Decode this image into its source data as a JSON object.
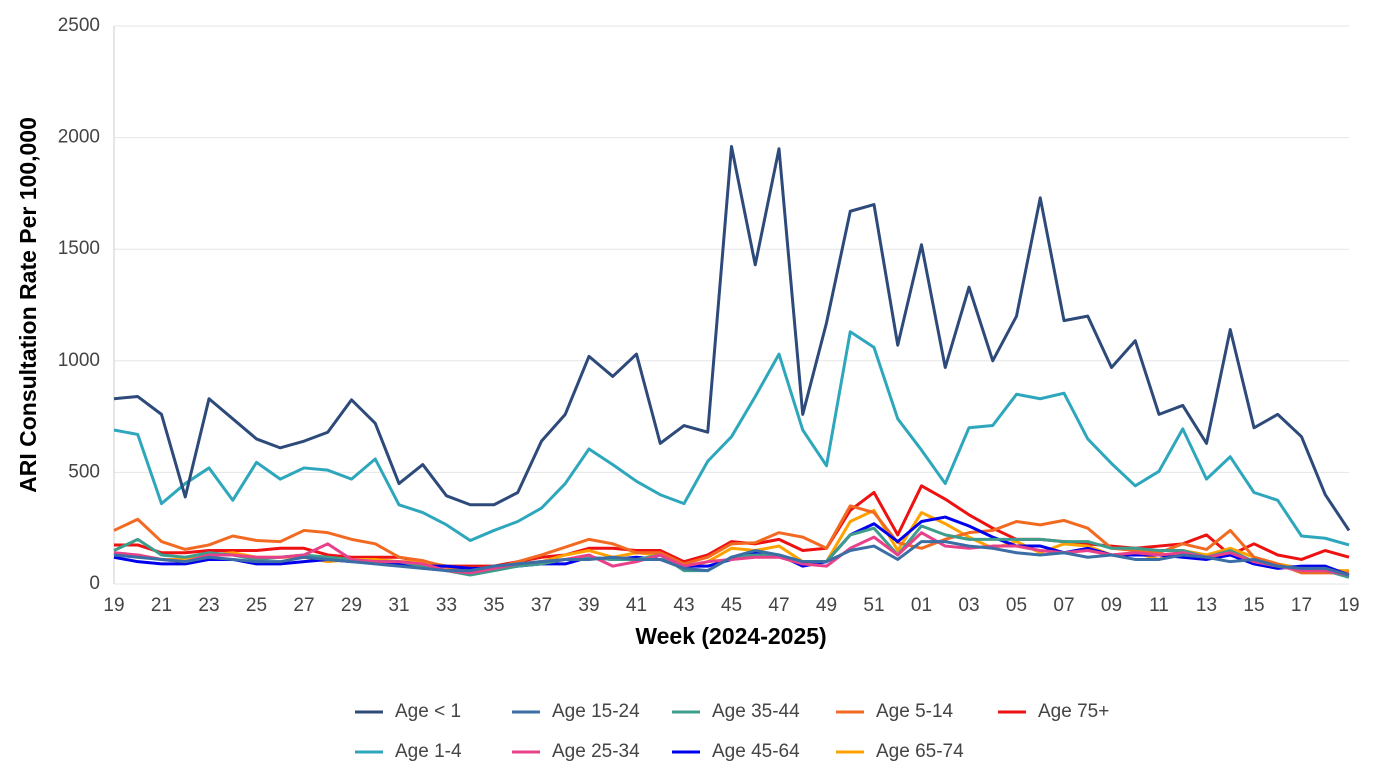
{
  "chart_data": {
    "type": "line",
    "x_label": "Week (2024-2025)",
    "y_label": "ARI Consultation Rate Per 100,000",
    "categories": [
      "19",
      null,
      "21",
      null,
      "23",
      null,
      "25",
      null,
      "27",
      null,
      "29",
      null,
      "31",
      null,
      "33",
      null,
      "35",
      null,
      "37",
      null,
      "39",
      null,
      "41",
      null,
      "43",
      null,
      "45",
      null,
      "47",
      null,
      "49",
      null,
      "51",
      null,
      "01",
      null,
      "03",
      null,
      "05",
      null,
      "07",
      null,
      "09",
      null,
      "11",
      null,
      "13",
      null,
      "15",
      null,
      "17",
      null,
      "19"
    ],
    "ylim": [
      0,
      2500
    ],
    "yticks": [
      0,
      500,
      1000,
      1500,
      2000,
      2500
    ],
    "grid": true,
    "series": [
      {
        "name": "Age < 1",
        "color": "#2d4a7a",
        "values": [
          830,
          840,
          760,
          390,
          830,
          740,
          650,
          610,
          640,
          680,
          825,
          720,
          450,
          535,
          395,
          355,
          355,
          410,
          640,
          760,
          1020,
          930,
          1030,
          630,
          710,
          680,
          1960,
          1430,
          1950,
          760,
          1170,
          1670,
          1700,
          1070,
          1520,
          970,
          1330,
          1000,
          1200,
          1730,
          1180,
          1200,
          970,
          1090,
          760,
          800,
          630,
          1140,
          700,
          760,
          660,
          400,
          240
        ]
      },
      {
        "name": "Age 1-4",
        "color": "#2ea7bd",
        "values": [
          690,
          670,
          360,
          450,
          520,
          375,
          545,
          470,
          520,
          510,
          470,
          560,
          355,
          320,
          265,
          195,
          240,
          280,
          340,
          450,
          605,
          535,
          460,
          400,
          360,
          550,
          660,
          840,
          1030,
          690,
          530,
          1130,
          1060,
          740,
          600,
          450,
          700,
          710,
          850,
          830,
          855,
          650,
          540,
          440,
          505,
          695,
          470,
          570,
          410,
          375,
          215,
          205,
          175
        ]
      },
      {
        "name": "Age 15-24",
        "color": "#3a6ea5",
        "values": [
          130,
          120,
          110,
          100,
          120,
          110,
          100,
          100,
          120,
          110,
          100,
          90,
          80,
          70,
          60,
          60,
          80,
          90,
          100,
          110,
          110,
          120,
          110,
          110,
          70,
          60,
          120,
          150,
          130,
          100,
          100,
          150,
          170,
          110,
          190,
          190,
          170,
          160,
          140,
          130,
          140,
          120,
          130,
          110,
          110,
          130,
          120,
          100,
          110,
          80,
          70,
          70,
          40
        ]
      },
      {
        "name": "Age 25-34",
        "color": "#e8418a",
        "values": [
          140,
          130,
          110,
          100,
          130,
          130,
          120,
          120,
          130,
          180,
          110,
          100,
          100,
          90,
          60,
          50,
          70,
          90,
          100,
          110,
          130,
          80,
          100,
          130,
          80,
          100,
          110,
          120,
          120,
          90,
          80,
          160,
          210,
          130,
          230,
          170,
          160,
          170,
          170,
          150,
          140,
          150,
          130,
          140,
          130,
          140,
          120,
          140,
          100,
          80,
          60,
          60,
          40
        ]
      },
      {
        "name": "Age 35-44",
        "color": "#3e9c8c",
        "values": [
          150,
          200,
          130,
          120,
          140,
          130,
          110,
          120,
          130,
          120,
          110,
          100,
          100,
          80,
          60,
          40,
          60,
          80,
          90,
          110,
          120,
          110,
          110,
          130,
          60,
          60,
          120,
          130,
          130,
          100,
          100,
          220,
          250,
          130,
          260,
          220,
          200,
          200,
          200,
          200,
          190,
          190,
          160,
          160,
          150,
          150,
          120,
          150,
          100,
          80,
          60,
          60,
          30
        ]
      },
      {
        "name": "Age 45-64",
        "color": "#0000ee",
        "values": [
          120,
          100,
          90,
          90,
          110,
          110,
          90,
          90,
          100,
          110,
          100,
          100,
          90,
          80,
          80,
          70,
          70,
          80,
          90,
          90,
          120,
          110,
          120,
          110,
          80,
          80,
          110,
          140,
          130,
          80,
          100,
          220,
          270,
          190,
          280,
          300,
          260,
          210,
          170,
          170,
          140,
          160,
          130,
          130,
          130,
          120,
          110,
          130,
          90,
          70,
          80,
          80,
          40
        ]
      },
      {
        "name": "Age 5-14",
        "color": "#f26a22",
        "values": [
          240,
          290,
          190,
          155,
          175,
          215,
          195,
          190,
          240,
          230,
          200,
          180,
          120,
          105,
          75,
          55,
          70,
          100,
          130,
          165,
          200,
          180,
          140,
          140,
          90,
          120,
          180,
          185,
          230,
          210,
          160,
          350,
          320,
          185,
          160,
          200,
          230,
          240,
          280,
          265,
          285,
          250,
          160,
          150,
          140,
          180,
          155,
          240,
          120,
          90,
          50,
          50,
          50
        ]
      },
      {
        "name": "Age 65-74",
        "color": "#ffa200",
        "values": [
          130,
          130,
          110,
          110,
          130,
          140,
          120,
          120,
          120,
          100,
          110,
          110,
          100,
          100,
          80,
          70,
          70,
          90,
          100,
          130,
          150,
          120,
          140,
          130,
          70,
          100,
          160,
          150,
          170,
          100,
          100,
          280,
          330,
          150,
          320,
          270,
          210,
          160,
          190,
          140,
          180,
          170,
          130,
          140,
          110,
          150,
          130,
          160,
          120,
          90,
          70,
          60,
          60
        ]
      },
      {
        "name": "Age 75+",
        "color": "#ee1111",
        "values": [
          175,
          175,
          140,
          140,
          150,
          150,
          150,
          160,
          160,
          130,
          120,
          120,
          120,
          100,
          80,
          80,
          80,
          100,
          120,
          130,
          160,
          160,
          150,
          150,
          100,
          130,
          190,
          180,
          200,
          150,
          160,
          330,
          410,
          220,
          440,
          380,
          310,
          250,
          200,
          200,
          190,
          180,
          170,
          160,
          170,
          180,
          220,
          130,
          180,
          130,
          110,
          150,
          120
        ]
      }
    ]
  }
}
